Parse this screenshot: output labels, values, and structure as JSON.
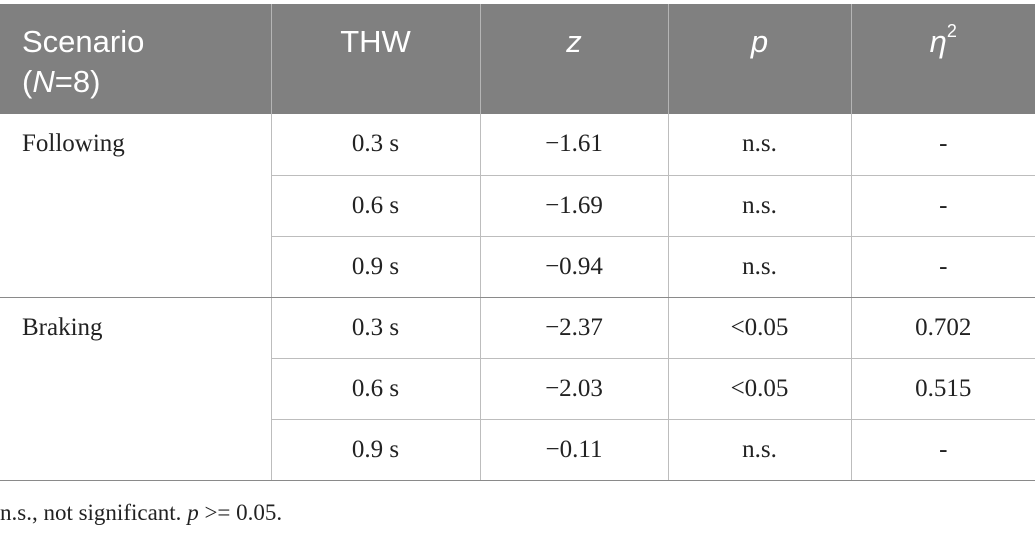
{
  "table": {
    "headers": {
      "scenario_line1": "Scenario",
      "scenario_n_symbol": "N",
      "scenario_n_value": "=8)",
      "scenario_open_paren": "(",
      "thw": "THW",
      "z": "z",
      "p": "p",
      "eta_symbol": "η",
      "eta_superscript": "2"
    },
    "groups": [
      {
        "scenario": "Following",
        "rows": [
          {
            "thw": "0.3 s",
            "z": "−1.61",
            "p": "n.s.",
            "eta2": "-"
          },
          {
            "thw": "0.6 s",
            "z": "−1.69",
            "p": "n.s.",
            "eta2": "-"
          },
          {
            "thw": "0.9 s",
            "z": "−0.94",
            "p": "n.s.",
            "eta2": "-"
          }
        ]
      },
      {
        "scenario": "Braking",
        "rows": [
          {
            "thw": "0.3 s",
            "z": "−2.37",
            "p": "<0.05",
            "eta2": "0.702"
          },
          {
            "thw": "0.6 s",
            "z": "−2.03",
            "p": "<0.05",
            "eta2": "0.515"
          },
          {
            "thw": "0.9 s",
            "z": "−0.11",
            "p": "n.s.",
            "eta2": "-"
          }
        ]
      }
    ]
  },
  "footnote": {
    "prefix": "n.s., not significant. ",
    "p_symbol": "p",
    "suffix": " >= 0.05."
  }
}
